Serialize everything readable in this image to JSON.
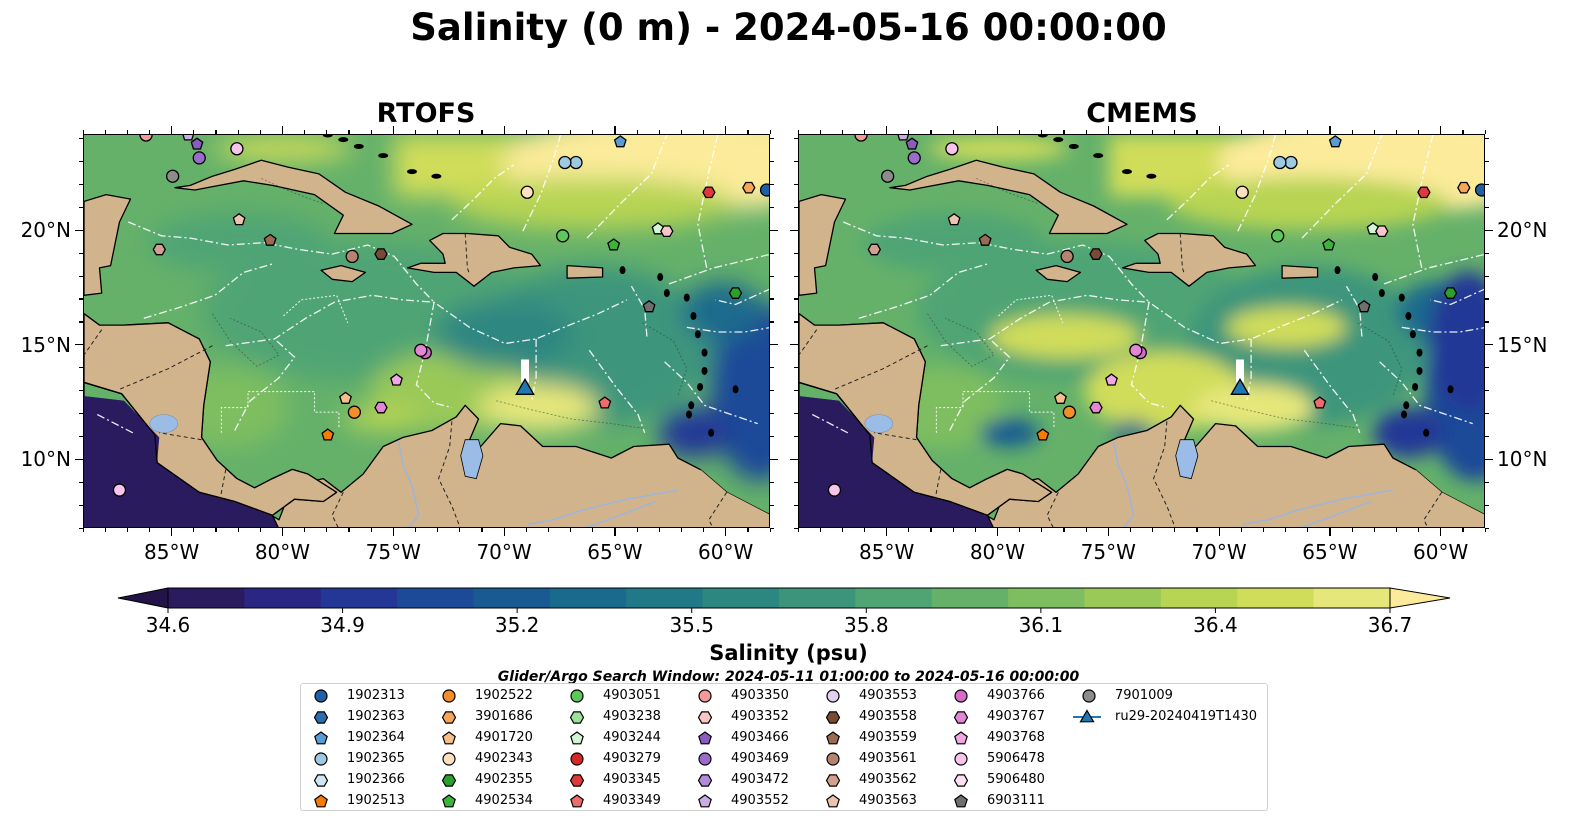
{
  "figure": {
    "title": "Salinity (0 m) - 2024-05-16 00:00:00",
    "search_window": "Glider/Argo Search Window: 2024-05-11 01:00:00 to 2024-05-16 00:00:00"
  },
  "panels": [
    {
      "id": "rtofs",
      "title": "RTOFS"
    },
    {
      "id": "cmems",
      "title": "CMEMS"
    }
  ],
  "map_extent": {
    "lon": [
      -89,
      -58
    ],
    "lat": [
      7,
      24.2
    ]
  },
  "axes": {
    "lon_ticks": [
      {
        "value": -85,
        "label": "85°W"
      },
      {
        "value": -80,
        "label": "80°W"
      },
      {
        "value": -75,
        "label": "75°W"
      },
      {
        "value": -70,
        "label": "70°W"
      },
      {
        "value": -65,
        "label": "65°W"
      },
      {
        "value": -60,
        "label": "60°W"
      }
    ],
    "lat_ticks": [
      {
        "value": 20,
        "label": "20°N"
      },
      {
        "value": 15,
        "label": "15°N"
      },
      {
        "value": 10,
        "label": "10°N"
      }
    ]
  },
  "colorbar": {
    "label": "Salinity (psu)",
    "min": 34.6,
    "max": 36.7,
    "extend": "both",
    "ticks": [
      "34.6",
      "34.9",
      "35.2",
      "35.5",
      "35.8",
      "36.1",
      "36.4",
      "36.7"
    ],
    "tick_values": [
      34.6,
      34.9,
      35.2,
      35.5,
      35.8,
      36.1,
      36.4,
      36.7
    ],
    "colors": [
      "#2a1a5e",
      "#2a2683",
      "#243796",
      "#1d4a98",
      "#195a93",
      "#1a6a8d",
      "#217887",
      "#2d8781",
      "#3c957b",
      "#4fa474",
      "#65b16a",
      "#7ebe60",
      "#9ac958",
      "#b7d452",
      "#d0dd5a",
      "#e6e77a"
    ],
    "under_color": "#221447",
    "over_color": "#fbeb9a"
  },
  "map_colors": {
    "land": "#d2b48c",
    "lake": "#9bbce6",
    "river": "#9fb4d8",
    "deep_ocean": "#2a1a5e"
  },
  "legend": {
    "items": [
      {
        "label": "1902313",
        "marker": "circle",
        "color": "#1f5fa6"
      },
      {
        "label": "1902363",
        "marker": "hexagon",
        "color": "#2b6cb0"
      },
      {
        "label": "1902364",
        "marker": "pentagon",
        "color": "#5a9bd5"
      },
      {
        "label": "1902365",
        "marker": "circle",
        "color": "#9ecae1"
      },
      {
        "label": "1902366",
        "marker": "hexagon",
        "color": "#cfe6f5"
      },
      {
        "label": "1902513",
        "marker": "pentagon",
        "color": "#f57c00"
      },
      {
        "label": "1902522",
        "marker": "circle",
        "color": "#f28e2b"
      },
      {
        "label": "3901686",
        "marker": "hexagon",
        "color": "#f6a55a"
      },
      {
        "label": "4901720",
        "marker": "pentagon",
        "color": "#f7c08a"
      },
      {
        "label": "4902343",
        "marker": "circle",
        "color": "#fde0c0"
      },
      {
        "label": "4902355",
        "marker": "hexagon",
        "color": "#2ca02c"
      },
      {
        "label": "4902534",
        "marker": "pentagon",
        "color": "#3cb43c"
      },
      {
        "label": "4903051",
        "marker": "circle",
        "color": "#5cc85c"
      },
      {
        "label": "4903238",
        "marker": "hexagon",
        "color": "#9be29b"
      },
      {
        "label": "4903244",
        "marker": "pentagon",
        "color": "#d4f5d4"
      },
      {
        "label": "4903279",
        "marker": "circle",
        "color": "#d62728"
      },
      {
        "label": "4903345",
        "marker": "hexagon",
        "color": "#e0393a"
      },
      {
        "label": "4903349",
        "marker": "pentagon",
        "color": "#ec6b6b"
      },
      {
        "label": "4903350",
        "marker": "circle",
        "color": "#f49a9a"
      },
      {
        "label": "4903352",
        "marker": "hexagon",
        "color": "#f8c6c6"
      },
      {
        "label": "4903466",
        "marker": "pentagon",
        "color": "#8a5cc0"
      },
      {
        "label": "4903469",
        "marker": "circle",
        "color": "#9b6bcc"
      },
      {
        "label": "4903472",
        "marker": "hexagon",
        "color": "#b18ad8"
      },
      {
        "label": "4903552",
        "marker": "pentagon",
        "color": "#c9aee6"
      },
      {
        "label": "4903553",
        "marker": "circle",
        "color": "#e2d2f1"
      },
      {
        "label": "4903558",
        "marker": "hexagon",
        "color": "#7a4a35"
      },
      {
        "label": "4903559",
        "marker": "pentagon",
        "color": "#9a6a52"
      },
      {
        "label": "4903561",
        "marker": "circle",
        "color": "#b5836f"
      },
      {
        "label": "4903562",
        "marker": "hexagon",
        "color": "#d2a08c"
      },
      {
        "label": "4903563",
        "marker": "pentagon",
        "color": "#ecc2b0"
      },
      {
        "label": "4903766",
        "marker": "circle",
        "color": "#d66cc8"
      },
      {
        "label": "4903767",
        "marker": "hexagon",
        "color": "#e486d6"
      },
      {
        "label": "4903768",
        "marker": "pentagon",
        "color": "#f0a8e4"
      },
      {
        "label": "5906478",
        "marker": "circle",
        "color": "#f7c4ec"
      },
      {
        "label": "5906480",
        "marker": "hexagon",
        "color": "#fbe0f4"
      },
      {
        "label": "6903111",
        "marker": "pentagon",
        "color": "#6f6f6f"
      },
      {
        "label": "7901009",
        "marker": "circle",
        "color": "#8c8c8c"
      },
      {
        "label": "ru29-20240419T1430",
        "marker": "triangle-line",
        "color": "#1f77b4"
      }
    ]
  },
  "observations": [
    {
      "lon": -58.2,
      "lat": 21.8,
      "marker": "circle",
      "color": "#1f5fa6"
    },
    {
      "lon": -64.8,
      "lat": 23.9,
      "marker": "pentagon",
      "color": "#5a9bd5"
    },
    {
      "lon": -66.8,
      "lat": 23.0,
      "marker": "circle",
      "color": "#9ecae1"
    },
    {
      "lon": -67.3,
      "lat": 23.0,
      "marker": "circle",
      "color": "#9ecae1"
    },
    {
      "lon": -69.0,
      "lat": 21.7,
      "marker": "circle",
      "color": "#fde0c0"
    },
    {
      "lon": -59.0,
      "lat": 21.9,
      "marker": "hexagon",
      "color": "#f6a55a"
    },
    {
      "lon": -60.8,
      "lat": 21.7,
      "marker": "hexagon",
      "color": "#e0393a"
    },
    {
      "lon": -67.4,
      "lat": 19.8,
      "marker": "circle",
      "color": "#5cc85c"
    },
    {
      "lon": -65.1,
      "lat": 19.4,
      "marker": "pentagon",
      "color": "#3cb43c"
    },
    {
      "lon": -63.1,
      "lat": 20.1,
      "marker": "pentagon",
      "color": "#d4f5d4"
    },
    {
      "lon": -62.7,
      "lat": 20.0,
      "marker": "hexagon",
      "color": "#f8c6c6"
    },
    {
      "lon": -59.6,
      "lat": 17.3,
      "marker": "hexagon",
      "color": "#2ca02c"
    },
    {
      "lon": -63.5,
      "lat": 16.7,
      "marker": "pentagon",
      "color": "#6f6f6f"
    },
    {
      "lon": -65.5,
      "lat": 12.5,
      "marker": "pentagon",
      "color": "#ec6b6b"
    },
    {
      "lon": -73.6,
      "lat": 14.7,
      "marker": "circle",
      "color": "#d66cc8"
    },
    {
      "lon": -73.8,
      "lat": 14.8,
      "marker": "circle",
      "color": "#e486d6"
    },
    {
      "lon": -74.9,
      "lat": 13.5,
      "marker": "pentagon",
      "color": "#f0a8e4"
    },
    {
      "lon": -75.6,
      "lat": 12.3,
      "marker": "hexagon",
      "color": "#e486d6"
    },
    {
      "lon": -77.2,
      "lat": 12.7,
      "marker": "pentagon",
      "color": "#f7c08a"
    },
    {
      "lon": -76.8,
      "lat": 12.1,
      "marker": "circle",
      "color": "#f28e2b"
    },
    {
      "lon": -78.0,
      "lat": 11.1,
      "marker": "pentagon",
      "color": "#f57c00"
    },
    {
      "lon": -87.4,
      "lat": 8.7,
      "marker": "circle",
      "color": "#f7c4ec"
    },
    {
      "lon": -85.6,
      "lat": 19.2,
      "marker": "hexagon",
      "color": "#d2a08c"
    },
    {
      "lon": -82.0,
      "lat": 20.5,
      "marker": "pentagon",
      "color": "#ecc2b0"
    },
    {
      "lon": -80.6,
      "lat": 19.6,
      "marker": "pentagon",
      "color": "#9a6a52"
    },
    {
      "lon": -76.9,
      "lat": 18.9,
      "marker": "circle",
      "color": "#b5836f"
    },
    {
      "lon": -75.6,
      "lat": 19.0,
      "marker": "hexagon",
      "color": "#7a4a35"
    },
    {
      "lon": -85.0,
      "lat": 22.4,
      "marker": "circle",
      "color": "#8c8c8c"
    },
    {
      "lon": -82.1,
      "lat": 23.6,
      "marker": "circle",
      "color": "#f7c4ec"
    },
    {
      "lon": -83.8,
      "lat": 23.2,
      "marker": "circle",
      "color": "#9b6bcc"
    },
    {
      "lon": -83.9,
      "lat": 23.8,
      "marker": "pentagon",
      "color": "#8a5cc0"
    },
    {
      "lon": -84.3,
      "lat": 24.2,
      "marker": "pentagon",
      "color": "#c9aee6"
    },
    {
      "lon": -86.2,
      "lat": 24.2,
      "marker": "circle",
      "color": "#f49a9a"
    }
  ],
  "glider": {
    "lon": -69.1,
    "lat": 13.1,
    "marker": "triangle",
    "color": "#1f77b4",
    "track_lat": [
      13.4,
      14.4
    ]
  }
}
